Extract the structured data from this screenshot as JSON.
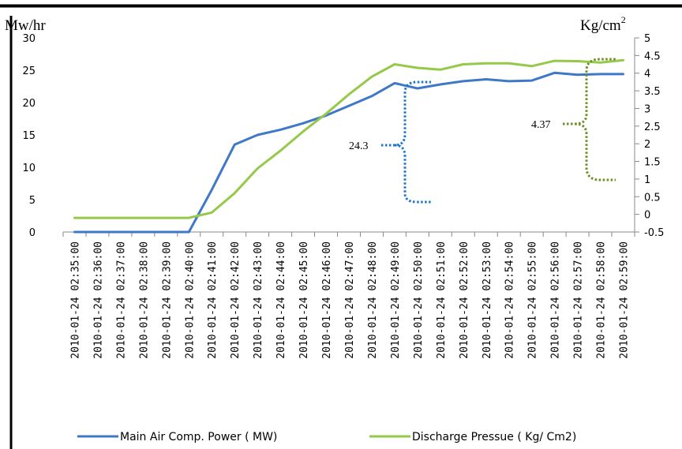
{
  "chart_data": {
    "type": "line",
    "x": [
      "2010-01-24 02:35:00",
      "2010-01-24 02:36:00",
      "2010-01-24 02:37:00",
      "2010-01-24 02:38:00",
      "2010-01-24 02:39:00",
      "2010-01-24 02:40:00",
      "2010-01-24 02:41:00",
      "2010-01-24 02:42:00",
      "2010-01-24 02:43:00",
      "2010-01-24 02:44:00",
      "2010-01-24 02:45:00",
      "2010-01-24 02:46:00",
      "2010-01-24 02:47:00",
      "2010-01-24 02:48:00",
      "2010-01-24 02:49:00",
      "2010-01-24 02:50:00",
      "2010-01-24 02:51:00",
      "2010-01-24 02:52:00",
      "2010-01-24 02:53:00",
      "2010-01-24 02:54:00",
      "2010-01-24 02:55:00",
      "2010-01-24 02:56:00",
      "2010-01-24 02:57:00",
      "2010-01-24 02:58:00",
      "2010-01-24 02:59:00"
    ],
    "y_left_label": "Mw/hr",
    "y_right_label_base": "Kg/cm",
    "y_right_label_sup": "2",
    "y_left": {
      "min": 0,
      "max": 30,
      "ticks": [
        "0",
        "5",
        "10",
        "15",
        "20",
        "25",
        "30"
      ]
    },
    "y_right": {
      "min": -0.5,
      "max": 5,
      "ticks": [
        "-0.5",
        "0",
        "0.5",
        "1",
        "1.5",
        "2",
        "2.5",
        "3",
        "3.5",
        "4",
        "4.5",
        "5"
      ]
    },
    "series": [
      {
        "name": "Main Air Comp. Power ( MW)",
        "axis": "left",
        "color": "#3f78c8",
        "values": [
          0,
          0,
          0,
          0,
          0,
          0,
          6.5,
          13.5,
          15.0,
          15.8,
          16.8,
          18.0,
          19.5,
          21.0,
          23.0,
          22.2,
          22.8,
          23.3,
          23.6,
          23.3,
          23.4,
          24.6,
          24.3,
          24.4,
          24.4
        ]
      },
      {
        "name": "Discharge Pressue ( Kg/ Cm2)",
        "axis": "right",
        "color": "#94c94a",
        "values": [
          -0.1,
          -0.1,
          -0.1,
          -0.1,
          -0.1,
          -0.1,
          0.05,
          0.6,
          1.3,
          1.8,
          2.35,
          2.85,
          3.4,
          3.9,
          4.25,
          4.15,
          4.1,
          4.25,
          4.28,
          4.28,
          4.2,
          4.35,
          4.34,
          4.3,
          4.37
        ]
      }
    ],
    "annotations": [
      {
        "text": "24.3",
        "color": "#1f77c8"
      },
      {
        "text": "4.37",
        "color": "#6b8e23"
      }
    ],
    "legend_position": "bottom",
    "grid": false
  }
}
